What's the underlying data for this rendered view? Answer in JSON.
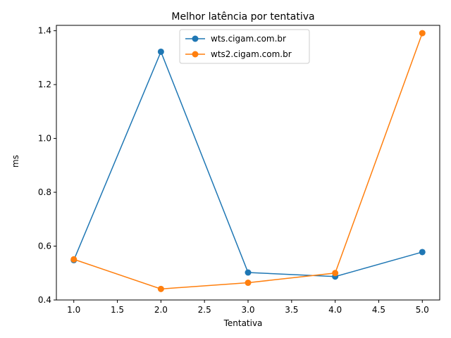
{
  "chart_data": {
    "type": "line",
    "title": "Melhor latência por tentativa",
    "xlabel": "Tentativa",
    "ylabel": "ms",
    "xlim": [
      0.8,
      5.2
    ],
    "ylim": [
      0.4,
      1.42
    ],
    "xticks": [
      1.0,
      1.5,
      2.0,
      2.5,
      3.0,
      3.5,
      4.0,
      4.5,
      5.0
    ],
    "xtick_labels": [
      "1.0",
      "1.5",
      "2.0",
      "2.5",
      "3.0",
      "3.5",
      "4.0",
      "4.5",
      "5.0"
    ],
    "yticks": [
      0.4,
      0.6,
      0.8,
      1.0,
      1.2,
      1.4
    ],
    "ytick_labels": [
      "0.4",
      "0.6",
      "0.8",
      "1.0",
      "1.2",
      "1.4"
    ],
    "grid": false,
    "legend_position": "top-center",
    "x": [
      1,
      2,
      3,
      4,
      5
    ],
    "series": [
      {
        "name": "wts.cigam.com.br",
        "color": "#1f77b4",
        "values": [
          0.548,
          1.322,
          0.502,
          0.487,
          0.578
        ]
      },
      {
        "name": "wts2.cigam.com.br",
        "color": "#ff7f0e",
        "values": [
          0.551,
          0.441,
          0.464,
          0.5,
          1.391
        ]
      }
    ]
  }
}
